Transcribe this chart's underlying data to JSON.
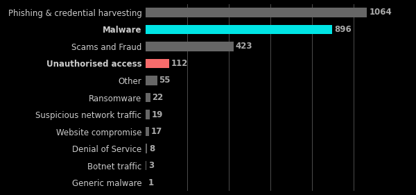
{
  "categories": [
    "Generic malware",
    "Botnet traffic",
    "Denial of Service",
    "Website compromise",
    "Suspicious network traffic",
    "Ransomware",
    "Other",
    "Unauthorised access",
    "Scams and Fraud",
    "Malware",
    "Phishing & credential harvesting"
  ],
  "values": [
    1,
    3,
    8,
    17,
    19,
    22,
    55,
    112,
    423,
    896,
    1064
  ],
  "bar_colors": [
    "#666666",
    "#666666",
    "#666666",
    "#666666",
    "#666666",
    "#666666",
    "#666666",
    "#f76b6b",
    "#666666",
    "#00e5e5",
    "#666666"
  ],
  "label_fontweights": [
    "normal",
    "normal",
    "normal",
    "normal",
    "normal",
    "normal",
    "normal",
    "bold",
    "normal",
    "bold",
    "normal"
  ],
  "value_labels": [
    "1",
    "3",
    "8",
    "17",
    "19",
    "22",
    "55",
    "112",
    "423",
    "896",
    "1064"
  ],
  "value_color": "#aaaaaa",
  "background_color": "#000000",
  "text_color": "#cccccc",
  "bar_height": 0.55,
  "xlim": [
    0,
    1200
  ],
  "grid_color": "#ffffff",
  "grid_alpha": 0.3,
  "grid_ticks": [
    200,
    400,
    600,
    800,
    1000
  ],
  "font_size": 8.5,
  "value_font_size": 8.5
}
